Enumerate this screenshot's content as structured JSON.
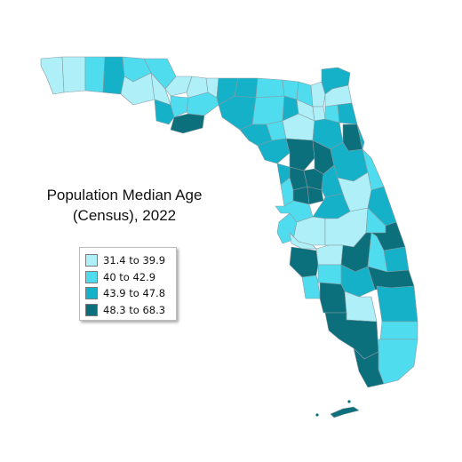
{
  "title_line1": "Population Median Age",
  "title_line2": "(Census), 2022",
  "legend": [
    {
      "label": "31.4 to 39.9",
      "color": "#aeeff8"
    },
    {
      "label": "40 to 42.9",
      "color": "#4fdcee"
    },
    {
      "label": "43.9 to 47.8",
      "color": "#14b1c8"
    },
    {
      "label": "48.3 to 68.3",
      "color": "#0b6f7c"
    }
  ]
}
